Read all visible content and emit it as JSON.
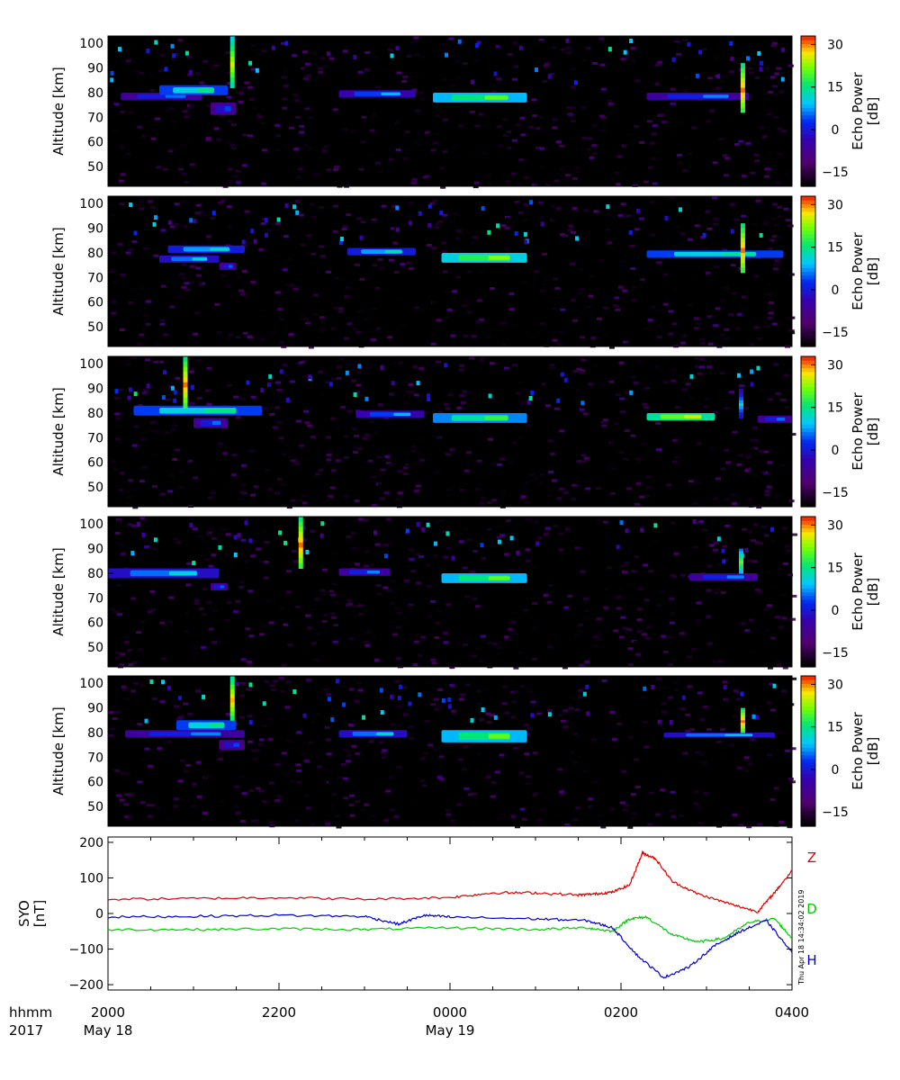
{
  "chart_data": [
    {
      "type": "heatmap",
      "panel": 1,
      "ylabel": "Altitude [km]",
      "yticks": [
        50,
        60,
        70,
        80,
        90,
        100
      ],
      "ylim": [
        42,
        103
      ],
      "colorbar": {
        "label": "Echo Power [dB]",
        "ticks": [
          -15,
          0,
          15,
          30
        ],
        "range": [
          -20,
          33
        ]
      },
      "echo_layers": [
        {
          "t": [
            20.15,
            21.1
          ],
          "alt": [
            77,
            80
          ],
          "peak_db": 5
        },
        {
          "t": [
            20.6,
            21.4
          ],
          "alt": [
            79,
            83
          ],
          "peak_db": 15
        },
        {
          "t": [
            21.2,
            21.5
          ],
          "alt": [
            71,
            76
          ],
          "peak_db": 3
        },
        {
          "t": [
            22.7,
            23.6
          ],
          "alt": [
            78,
            81
          ],
          "peak_db": 8
        },
        {
          "t": [
            23.8,
            24.9
          ],
          "alt": [
            76,
            80
          ],
          "peak_db": 20
        },
        {
          "t": [
            26.3,
            27.5
          ],
          "alt": [
            77,
            80
          ],
          "peak_db": 6
        }
      ],
      "spikes": [
        {
          "t": 21.45,
          "alt": [
            82,
            103
          ],
          "peak_db": 25
        },
        {
          "t": 27.42,
          "alt": [
            72,
            92
          ],
          "peak_db": 30
        }
      ]
    },
    {
      "type": "heatmap",
      "panel": 2,
      "ylabel": "Altitude [km]",
      "yticks": [
        50,
        60,
        70,
        80,
        90,
        100
      ],
      "ylim": [
        42,
        103
      ],
      "colorbar": {
        "label": "Echo Power [dB]",
        "ticks": [
          -15,
          0,
          15,
          30
        ],
        "range": [
          -20,
          33
        ]
      },
      "echo_layers": [
        {
          "t": [
            20.7,
            21.6
          ],
          "alt": [
            80,
            83
          ],
          "peak_db": 12
        },
        {
          "t": [
            20.6,
            21.3
          ],
          "alt": [
            76,
            79
          ],
          "peak_db": 10
        },
        {
          "t": [
            21.3,
            21.5
          ],
          "alt": [
            73,
            76
          ],
          "peak_db": 4
        },
        {
          "t": [
            22.8,
            23.6
          ],
          "alt": [
            79,
            82
          ],
          "peak_db": 12
        },
        {
          "t": [
            23.9,
            24.9
          ],
          "alt": [
            76,
            80
          ],
          "peak_db": 22
        },
        {
          "t": [
            26.3,
            27.9
          ],
          "alt": [
            78,
            81
          ],
          "peak_db": 15
        }
      ],
      "spikes": [
        {
          "t": 27.42,
          "alt": [
            72,
            92
          ],
          "peak_db": 30
        }
      ]
    },
    {
      "type": "heatmap",
      "panel": 3,
      "ylabel": "Altitude [km]",
      "yticks": [
        50,
        60,
        70,
        80,
        90,
        100
      ],
      "ylim": [
        42,
        103
      ],
      "colorbar": {
        "label": "Echo Power [dB]",
        "ticks": [
          -15,
          0,
          15,
          30
        ],
        "range": [
          -20,
          33
        ]
      },
      "echo_layers": [
        {
          "t": [
            20.3,
            21.8
          ],
          "alt": [
            79,
            83
          ],
          "peak_db": 15
        },
        {
          "t": [
            21.0,
            21.4
          ],
          "alt": [
            74,
            78
          ],
          "peak_db": 5
        },
        {
          "t": [
            22.9,
            23.7
          ],
          "alt": [
            78,
            81
          ],
          "peak_db": 8
        },
        {
          "t": [
            23.8,
            24.9
          ],
          "alt": [
            76,
            80
          ],
          "peak_db": 18
        },
        {
          "t": [
            26.3,
            27.1
          ],
          "alt": [
            77,
            80
          ],
          "peak_db": 25
        },
        {
          "t": [
            27.6,
            28.0
          ],
          "alt": [
            76,
            79
          ],
          "peak_db": 5
        }
      ],
      "spikes": [
        {
          "t": 20.9,
          "alt": [
            82,
            103
          ],
          "peak_db": 30
        },
        {
          "t": 27.4,
          "alt": [
            78,
            90
          ],
          "peak_db": 10
        }
      ]
    },
    {
      "type": "heatmap",
      "panel": 4,
      "ylabel": "Altitude [km]",
      "yticks": [
        50,
        60,
        70,
        80,
        90,
        100
      ],
      "ylim": [
        42,
        103
      ],
      "colorbar": {
        "label": "Echo Power [dB]",
        "ticks": [
          -15,
          0,
          15,
          30
        ],
        "range": [
          -20,
          33
        ]
      },
      "echo_layers": [
        {
          "t": [
            20.0,
            21.3
          ],
          "alt": [
            78,
            82
          ],
          "peak_db": 10
        },
        {
          "t": [
            21.2,
            21.4
          ],
          "alt": [
            73,
            76
          ],
          "peak_db": 4
        },
        {
          "t": [
            22.7,
            23.3
          ],
          "alt": [
            79,
            82
          ],
          "peak_db": 6
        },
        {
          "t": [
            23.9,
            24.9
          ],
          "alt": [
            76,
            80
          ],
          "peak_db": 20
        },
        {
          "t": [
            26.8,
            27.6
          ],
          "alt": [
            77,
            80
          ],
          "peak_db": 6
        }
      ],
      "spikes": [
        {
          "t": 22.25,
          "alt": [
            82,
            103
          ],
          "peak_db": 30
        },
        {
          "t": 27.4,
          "alt": [
            80,
            90
          ],
          "peak_db": 20
        }
      ]
    },
    {
      "type": "heatmap",
      "panel": 5,
      "ylabel": "Altitude [km]",
      "yticks": [
        50,
        60,
        70,
        80,
        90,
        100
      ],
      "ylim": [
        42,
        103
      ],
      "colorbar": {
        "label": "Echo Power [dB]",
        "ticks": [
          -15,
          0,
          15,
          30
        ],
        "range": [
          -20,
          33
        ]
      },
      "echo_layers": [
        {
          "t": [
            20.2,
            21.6
          ],
          "alt": [
            78,
            81
          ],
          "peak_db": 6
        },
        {
          "t": [
            20.8,
            21.5
          ],
          "alt": [
            81,
            85
          ],
          "peak_db": 15
        },
        {
          "t": [
            21.3,
            21.6
          ],
          "alt": [
            73,
            77
          ],
          "peak_db": 3
        },
        {
          "t": [
            22.7,
            23.5
          ],
          "alt": [
            78,
            81
          ],
          "peak_db": 10
        },
        {
          "t": [
            23.9,
            24.9
          ],
          "alt": [
            76,
            81
          ],
          "peak_db": 20
        },
        {
          "t": [
            26.5,
            27.8
          ],
          "alt": [
            78,
            80
          ],
          "peak_db": 10
        }
      ],
      "spikes": [
        {
          "t": 21.45,
          "alt": [
            85,
            103
          ],
          "peak_db": 28
        },
        {
          "t": 27.42,
          "alt": [
            80,
            90
          ],
          "peak_db": 30
        }
      ]
    },
    {
      "type": "line",
      "panel": 6,
      "ylabel": "SYO [nT]",
      "yticks": [
        -200,
        -100,
        0,
        100,
        200
      ],
      "ylim": [
        -215,
        215
      ],
      "series": [
        {
          "name": "Z",
          "color": "#dd0000",
          "x": [
            20.0,
            21.0,
            22.0,
            23.0,
            24.0,
            24.5,
            25.0,
            25.5,
            25.7,
            25.9,
            26.1,
            26.25,
            26.4,
            26.6,
            26.9,
            27.3,
            27.6,
            27.8,
            28.0
          ],
          "y": [
            40,
            42,
            45,
            40,
            45,
            58,
            58,
            52,
            55,
            60,
            80,
            170,
            155,
            90,
            55,
            25,
            5,
            60,
            120
          ]
        },
        {
          "name": "D",
          "color": "#00cc00",
          "x": [
            20.0,
            21.0,
            22.0,
            23.0,
            24.0,
            25.0,
            25.6,
            25.9,
            26.1,
            26.3,
            26.6,
            26.9,
            27.2,
            27.5,
            27.8,
            28.0
          ],
          "y": [
            -45,
            -45,
            -43,
            -45,
            -40,
            -45,
            -40,
            -50,
            -15,
            -10,
            -60,
            -80,
            -70,
            -25,
            -15,
            -70
          ]
        },
        {
          "name": "H",
          "color": "#0000cc",
          "x": [
            20.0,
            21.0,
            22.0,
            23.0,
            23.4,
            23.7,
            24.0,
            25.0,
            25.6,
            25.9,
            26.2,
            26.5,
            26.8,
            27.1,
            27.4,
            27.7,
            28.0
          ],
          "y": [
            -10,
            -8,
            -5,
            -8,
            -30,
            -5,
            -10,
            -15,
            -20,
            -40,
            -120,
            -180,
            -150,
            -90,
            -50,
            -20,
            -110
          ]
        }
      ]
    }
  ],
  "x_axis": {
    "row_label": "hhmm",
    "year_label": "2017",
    "ticks": [
      {
        "t": 20,
        "label": "2000",
        "date": "May 18"
      },
      {
        "t": 22,
        "label": "2200",
        "date": ""
      },
      {
        "t": 24,
        "label": "0000",
        "date": "May 19"
      },
      {
        "t": 26,
        "label": "0200",
        "date": ""
      },
      {
        "t": 28,
        "label": "0400",
        "date": ""
      }
    ],
    "range": [
      20,
      28
    ]
  },
  "timestamp": "Thu Apr 18 14:34:02 2019"
}
